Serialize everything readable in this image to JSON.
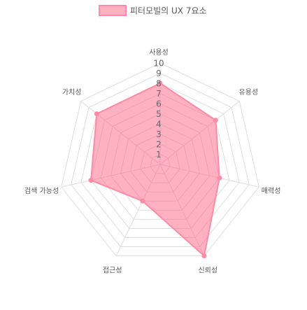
{
  "chart_data": {
    "type": "radar",
    "legend": {
      "label": "피터모빌의 UX 7요소",
      "position": "top-center"
    },
    "axes": [
      "사용성",
      "유용성",
      "매력성",
      "신뢰성",
      "접근성",
      "검색 가능성",
      "가치성"
    ],
    "values": [
      8,
      7,
      6,
      10,
      4,
      7,
      8
    ],
    "scale": {
      "min": 0,
      "max": 10,
      "ticks": [
        "1",
        "2",
        "3",
        "4",
        "5",
        "6",
        "7",
        "8",
        "9",
        "10"
      ]
    },
    "colors": {
      "fill": "rgba(255,99,132,0.5)",
      "stroke": "#ff8aa5",
      "grid": "#dddddd",
      "axis_label": "#555555",
      "tick_label": "#666666"
    }
  }
}
